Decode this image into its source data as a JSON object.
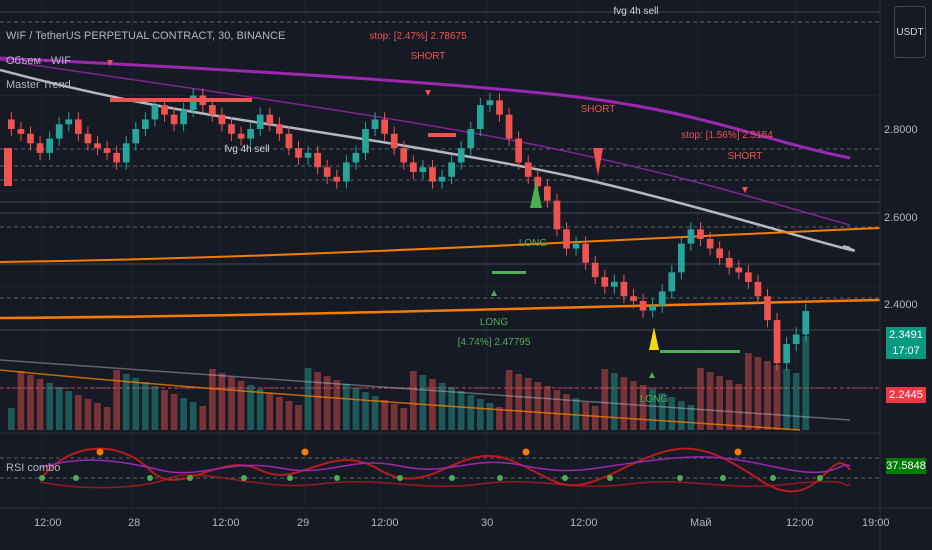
{
  "header": {
    "title": "WIF / TetherUS PERPETUAL CONTRACT, 30, BINANCE",
    "volume_label": "Объем · WIF",
    "indicator_label": "Master Trend",
    "rsi_label": "RSI combo",
    "currency": "USDT"
  },
  "price_axis": {
    "ticks": [
      "2.8000",
      "2.6000",
      "2.4000"
    ],
    "tags": [
      {
        "text": "2.3491",
        "color": "#089981"
      },
      {
        "text": "17:07",
        "color": "#089981"
      },
      {
        "text": "2.2445",
        "color": "#f23645"
      },
      {
        "text": "37.5848",
        "color": "#007a00"
      }
    ]
  },
  "time_axis": {
    "labels": [
      "12:00",
      "28",
      "12:00",
      "29",
      "12:00",
      "30",
      "12:00",
      "Май",
      "12:00",
      "19:00"
    ]
  },
  "annotations": [
    {
      "text": "stop: [2.47%] 2.78675"
    },
    {
      "text": "SHORT"
    },
    {
      "text": "SHORT"
    },
    {
      "text": "stop: [1.56%] 2.5154"
    },
    {
      "text": "SHORT"
    },
    {
      "text": "fvg 4h sell"
    },
    {
      "text": "fvg 4h sell"
    },
    {
      "text": "LONG"
    },
    {
      "text": "LONG"
    },
    {
      "text": "[4.74%] 2.47795"
    },
    {
      "text": "LONG"
    }
  ],
  "colors": {
    "background": "#161a25",
    "up": "#26a69a",
    "down": "#ef5350",
    "ma_purple": "#9c27b0",
    "ma_white": "#d1d4dc",
    "ma_orange": "#f57c00",
    "signal_green": "#4caf50",
    "signal_yellow": "#f5d90a"
  },
  "chart_data": {
    "type": "candlestick",
    "symbol": "WIF/USDT",
    "ylim": [
      2.1,
      3.0
    ],
    "close_series": [
      2.73,
      2.72,
      2.7,
      2.68,
      2.71,
      2.74,
      2.75,
      2.72,
      2.7,
      2.69,
      2.68,
      2.66,
      2.7,
      2.73,
      2.75,
      2.78,
      2.76,
      2.74,
      2.77,
      2.8,
      2.78,
      2.76,
      2.74,
      2.72,
      2.71,
      2.73,
      2.76,
      2.74,
      2.72,
      2.69,
      2.67,
      2.68,
      2.65,
      2.63,
      2.62,
      2.66,
      2.68,
      2.73,
      2.75,
      2.72,
      2.69,
      2.66,
      2.64,
      2.65,
      2.62,
      2.63,
      2.66,
      2.69,
      2.73,
      2.78,
      2.79,
      2.76,
      2.71,
      2.66,
      2.63,
      2.61,
      2.58,
      2.52,
      2.48,
      2.49,
      2.45,
      2.42,
      2.4,
      2.41,
      2.38,
      2.37,
      2.35,
      2.36,
      2.39,
      2.43,
      2.49,
      2.52,
      2.5,
      2.48,
      2.46,
      2.44,
      2.43,
      2.41,
      2.38,
      2.33,
      2.24,
      2.28,
      2.3,
      2.3491
    ],
    "rsi_last": 37.5848,
    "volume_last": 2.2445
  }
}
